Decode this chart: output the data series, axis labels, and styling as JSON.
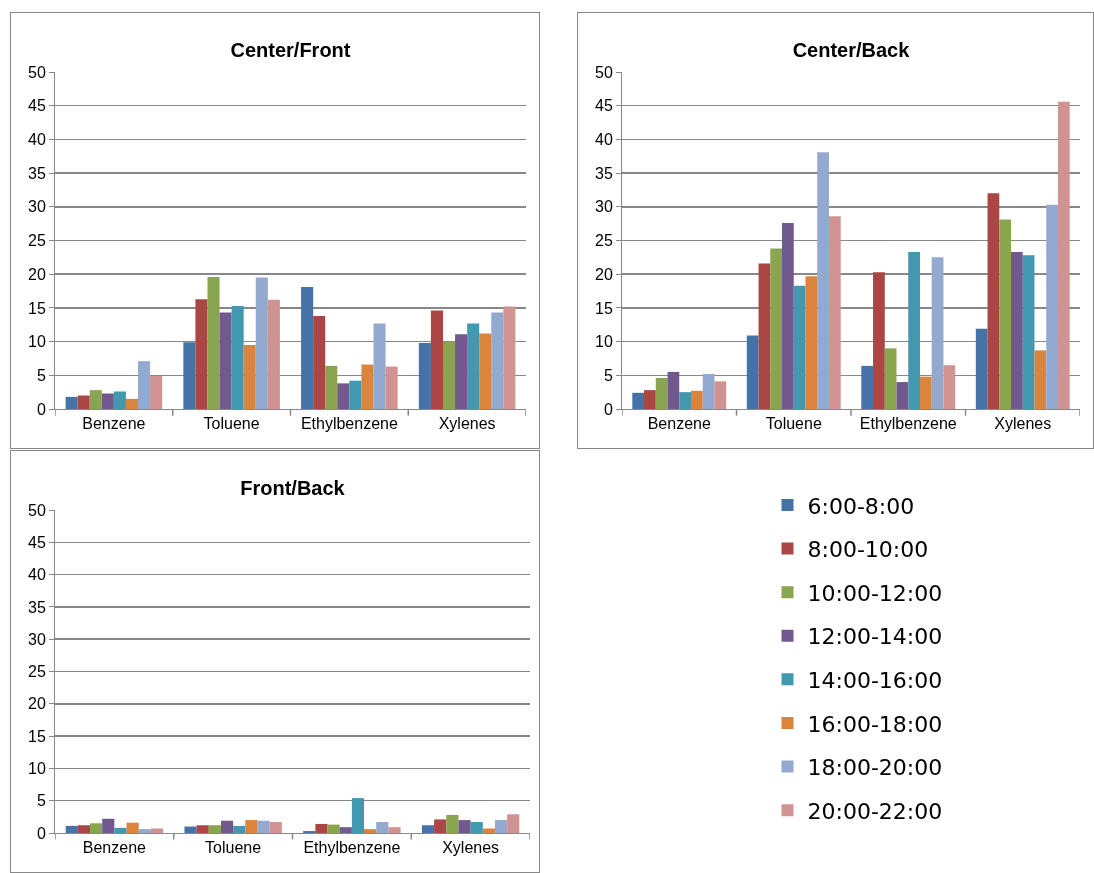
{
  "chart_data": [
    {
      "type": "bar",
      "title": "Center/Front",
      "categories": [
        "Benzene",
        "Toluene",
        "Ethylbenzene",
        "Xylenes"
      ],
      "ylim": [
        0,
        50
      ],
      "yticks": [
        0,
        5,
        10,
        15,
        20,
        25,
        30,
        35,
        40,
        45,
        50
      ],
      "grid": "y",
      "series": [
        {
          "color": "#4572a7",
          "values": [
            1.8,
            9.9,
            18.1,
            9.8
          ]
        },
        {
          "color": "#aa4643",
          "values": [
            2.0,
            16.3,
            13.8,
            14.6
          ]
        },
        {
          "color": "#89a54e",
          "values": [
            2.8,
            19.6,
            6.4,
            10.0
          ]
        },
        {
          "color": "#71588f",
          "values": [
            2.3,
            14.3,
            3.8,
            11.1
          ]
        },
        {
          "color": "#4198af",
          "values": [
            2.6,
            15.3,
            4.2,
            12.7
          ]
        },
        {
          "color": "#db843d",
          "values": [
            1.5,
            9.5,
            6.6,
            11.2
          ]
        },
        {
          "color": "#93a9cf",
          "values": [
            7.1,
            19.5,
            12.7,
            14.3
          ]
        },
        {
          "color": "#d19392",
          "values": [
            4.9,
            16.2,
            6.3,
            15.2
          ]
        }
      ]
    },
    {
      "type": "bar",
      "title": "Center/Back",
      "categories": [
        "Benzene",
        "Toluene",
        "Ethylbenzene",
        "Xylenes"
      ],
      "ylim": [
        0,
        50
      ],
      "yticks": [
        0,
        5,
        10,
        15,
        20,
        25,
        30,
        35,
        40,
        45,
        50
      ],
      "grid": "y",
      "series": [
        {
          "color": "#4572a7",
          "values": [
            2.4,
            10.9,
            6.4,
            11.9
          ]
        },
        {
          "color": "#aa4643",
          "values": [
            2.8,
            21.6,
            20.3,
            32.0
          ]
        },
        {
          "color": "#89a54e",
          "values": [
            4.6,
            23.8,
            9.0,
            28.1
          ]
        },
        {
          "color": "#71588f",
          "values": [
            5.5,
            27.6,
            4.0,
            23.3
          ]
        },
        {
          "color": "#4198af",
          "values": [
            2.5,
            18.3,
            23.3,
            22.8
          ]
        },
        {
          "color": "#db843d",
          "values": [
            2.7,
            19.7,
            4.8,
            8.7
          ]
        },
        {
          "color": "#93a9cf",
          "values": [
            5.2,
            38.1,
            22.5,
            30.3
          ]
        },
        {
          "color": "#d19392",
          "values": [
            4.1,
            28.6,
            6.5,
            45.6
          ]
        }
      ]
    },
    {
      "type": "bar",
      "title": "Front/Back",
      "categories": [
        "Benzene",
        "Toluene",
        "Ethylbenzene",
        "Xylenes"
      ],
      "ylim": [
        0,
        50
      ],
      "yticks": [
        0,
        5,
        10,
        15,
        20,
        25,
        30,
        35,
        40,
        45,
        50
      ],
      "grid": "y",
      "legend": "right",
      "series": [
        {
          "name": "6:00-8:00",
          "color": "#4572a7",
          "values": [
            1.1,
            1.0,
            0.3,
            1.2
          ]
        },
        {
          "name": "8:00-10:00",
          "color": "#aa4643",
          "values": [
            1.2,
            1.2,
            1.4,
            2.1
          ]
        },
        {
          "name": "10:00-12:00",
          "color": "#89a54e",
          "values": [
            1.5,
            1.2,
            1.3,
            2.8
          ]
        },
        {
          "name": "12:00-14:00",
          "color": "#71588f",
          "values": [
            2.2,
            1.9,
            0.9,
            2.0
          ]
        },
        {
          "name": "14:00-16:00",
          "color": "#4198af",
          "values": [
            0.8,
            1.1,
            5.4,
            1.7
          ]
        },
        {
          "name": "16:00-18:00",
          "color": "#db843d",
          "values": [
            1.6,
            2.0,
            0.6,
            0.7
          ]
        },
        {
          "name": "18:00-20:00",
          "color": "#93a9cf",
          "values": [
            0.6,
            1.9,
            1.7,
            2.0
          ]
        },
        {
          "name": "20:00-22:00",
          "color": "#d19392",
          "values": [
            0.7,
            1.7,
            0.9,
            2.9
          ]
        }
      ]
    }
  ]
}
